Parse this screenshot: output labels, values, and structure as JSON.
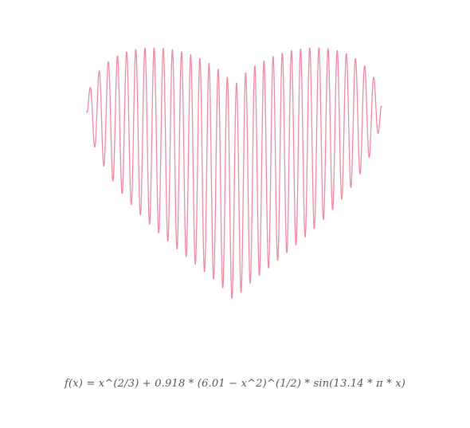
{
  "formula": "f(x) = x^(2/3) + 0.918 * (6.01 − x^2)^(1/2) * sin(13.14 * π * x)",
  "chart_data": {
    "type": "line",
    "function": {
      "power_numerator": 2,
      "power_denominator": 3,
      "amplitude": 0.918,
      "radius_squared": 6.01,
      "frequency": 13.14
    },
    "xlim": [
      -2.45,
      2.45
    ],
    "ylim": [
      -2.9,
      3.8
    ],
    "grid": false,
    "line_color": "#f08aa0"
  }
}
